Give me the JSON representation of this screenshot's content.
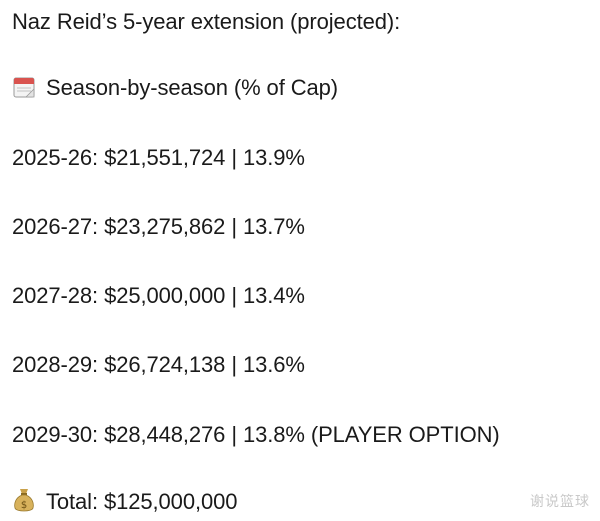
{
  "title": "Naz Reid’s 5-year extension (projected):",
  "section": {
    "icon": "calendar-icon",
    "label": "Season-by-season (% of Cap)"
  },
  "seasons": [
    {
      "text": "2025-26: $21,551,724 | 13.9%"
    },
    {
      "text": "2026-27: $23,275,862 | 13.7%"
    },
    {
      "text": "2027-28: $25,000,000 | 13.4%"
    },
    {
      "text": "2028-29: $26,724,138 | 13.6%"
    },
    {
      "text": "2029-30: $28,448,276 | 13.8% (PLAYER OPTION)"
    }
  ],
  "total": {
    "icon": "money-bag-icon",
    "label": "Total: $125,000,000"
  },
  "watermark": "谢说篮球"
}
